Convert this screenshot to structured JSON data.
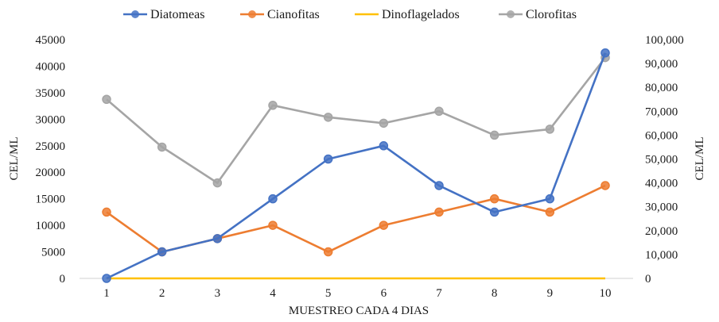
{
  "chart_data": {
    "type": "line",
    "title": "",
    "xlabel": "MUESTREO CADA 4 DIAS",
    "ylabel_left": "CEL/ML",
    "ylabel_right": "CEL/ML",
    "categories": [
      "1",
      "2",
      "3",
      "4",
      "5",
      "6",
      "7",
      "8",
      "9",
      "10"
    ],
    "y_left": {
      "range": [
        0,
        45000
      ],
      "ticks": [
        "0",
        "5000",
        "10000",
        "15000",
        "20000",
        "25000",
        "30000",
        "35000",
        "40000",
        "45000"
      ]
    },
    "y_right": {
      "range": [
        0,
        100000
      ],
      "ticks": [
        "0",
        "10,000",
        "20,000",
        "30,000",
        "40,000",
        "50,000",
        "60,000",
        "70,000",
        "80,000",
        "90,000",
        "100,000"
      ]
    },
    "legend_position": "top",
    "grid": false,
    "series": [
      {
        "name": "Diatomeas",
        "axis": "left",
        "color": "#4472C4",
        "marker": true,
        "values": [
          0,
          5000,
          7500,
          15000,
          22500,
          25000,
          17500,
          12500,
          15000,
          42500
        ]
      },
      {
        "name": "Cianofitas",
        "axis": "left",
        "color": "#ED7D31",
        "marker": true,
        "values": [
          12500,
          5000,
          7500,
          10000,
          5000,
          10000,
          12500,
          15000,
          12500,
          17500
        ]
      },
      {
        "name": "Dinoflagelados",
        "axis": "left",
        "color": "#FFC000",
        "marker": false,
        "values": [
          0,
          0,
          0,
          0,
          0,
          0,
          0,
          0,
          0,
          0
        ]
      },
      {
        "name": "Clorofitas",
        "axis": "right",
        "color": "#A5A5A5",
        "marker": true,
        "values": [
          75000,
          55000,
          40000,
          72500,
          67500,
          65000,
          70000,
          60000,
          62500,
          92500
        ]
      }
    ]
  }
}
